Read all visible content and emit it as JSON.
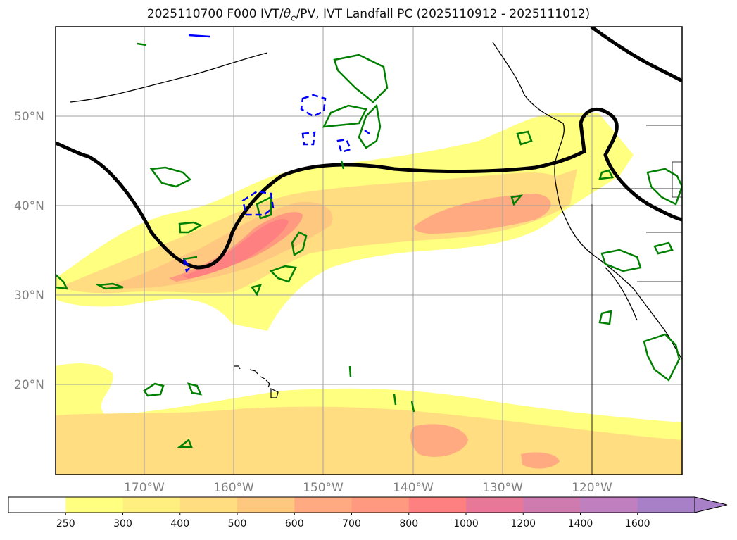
{
  "title": {
    "prefix": "2025110700 F000 IVT/",
    "theta_symbol": "θ",
    "theta_sub": "e",
    "suffix": "/PV, IVT Landfall PC (2025110912 - 2025111012)"
  },
  "map": {
    "lat_labels": [
      "50°N",
      "40°N",
      "30°N",
      "20°N"
    ],
    "lon_labels": [
      "170°W",
      "160°W",
      "150°W",
      "140°W",
      "130°W",
      "120°W"
    ]
  },
  "colorbar": {
    "levels": [
      "250",
      "300",
      "400",
      "500",
      "600",
      "700",
      "800",
      "1000",
      "1200",
      "1400",
      "1600"
    ],
    "colors": [
      "#ffffff",
      "#ffff80",
      "#ffef80",
      "#ffdd80",
      "#ffc880",
      "#ffaa80",
      "#ff9a80",
      "#ff8080",
      "#e87898",
      "#d07bb0",
      "#c080c0",
      "#a880c8"
    ]
  },
  "colors": {
    "ivt_low": "#ffff80",
    "ivt_mid": "#ffdd80",
    "ivt_high": "#ffaa80",
    "ivt_peak": "#ff8080",
    "pv_contour": "#008000",
    "theta_contour": "#0000ff",
    "front_line": "#000000",
    "coastline": "#000000",
    "grid": "#a0a0a0"
  }
}
